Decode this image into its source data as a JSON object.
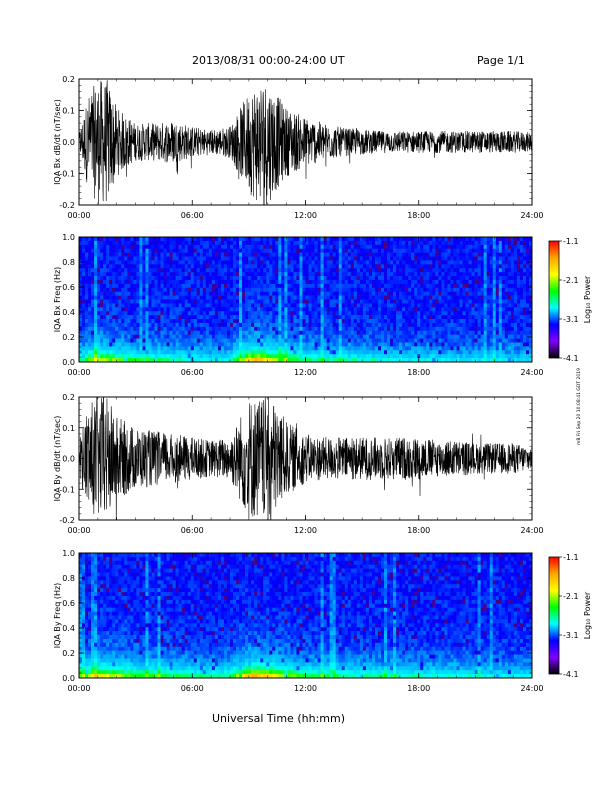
{
  "header": {
    "title": "2013/08/31   00:00-24:00 UT",
    "page": "Page 1/1"
  },
  "x_axis_label": "Universal Time (hh:mm)",
  "side_note": "mB Fri Sep 20 10:08:41 GDT 2019",
  "colorbar": {
    "label": "Log₁₀ Power",
    "ticks": [
      "-1.1",
      "-2.1",
      "-3.1",
      "-4.1"
    ],
    "stops": [
      "#ff0000",
      "#ffa500",
      "#ffff00",
      "#00ff00",
      "#00ffff",
      "#0000ff",
      "#8000ff",
      "#000000"
    ]
  },
  "chart_data": [
    {
      "type": "line",
      "ylabel": "IQA Bx dB/dt (nT/sec)",
      "x_ticks": [
        "00:00",
        "06:00",
        "12:00",
        "18:00",
        "24:00"
      ],
      "y_ticks": [
        "0.2",
        "0.1",
        "0.0",
        "-0.1",
        "-0.2"
      ],
      "xlim": [
        0,
        24
      ],
      "ylim": [
        -0.2,
        0.2
      ],
      "x": [
        0,
        0.5,
        1,
        1.5,
        2,
        3,
        4,
        5,
        6,
        7,
        8,
        9,
        9.5,
        10,
        10.5,
        11,
        12,
        13,
        14,
        15,
        16,
        17,
        18,
        19,
        20,
        21,
        22,
        23,
        24
      ],
      "envelope": [
        0.03,
        0.15,
        0.2,
        0.2,
        0.11,
        0.06,
        0.06,
        0.07,
        0.05,
        0.04,
        0.05,
        0.16,
        0.2,
        0.2,
        0.15,
        0.11,
        0.08,
        0.06,
        0.045,
        0.04,
        0.035,
        0.035,
        0.035,
        0.035,
        0.035,
        0.035,
        0.035,
        0.035,
        0.03
      ],
      "color": "#000000"
    },
    {
      "type": "heatmap",
      "ylabel": "IQA Bx Freq (Hz)",
      "x_ticks": [
        "00:00",
        "06:00",
        "12:00",
        "18:00",
        "24:00"
      ],
      "y_ticks": [
        "1.0",
        "0.8",
        "0.6",
        "0.4",
        "0.2",
        "0.0"
      ],
      "xlim": [
        0,
        24
      ],
      "ylim": [
        0,
        1
      ],
      "zlim": [
        -4.1,
        -1.1
      ],
      "activity_x": [
        0,
        1,
        2,
        3,
        4,
        5,
        6,
        7,
        8,
        9,
        9.5,
        10,
        11,
        12,
        13,
        14,
        15,
        16,
        17,
        18,
        19,
        20,
        21,
        22,
        23,
        24
      ],
      "activity": [
        0.5,
        0.85,
        0.7,
        0.55,
        0.55,
        0.5,
        0.45,
        0.4,
        0.45,
        0.95,
        1.0,
        0.9,
        0.7,
        0.55,
        0.5,
        0.5,
        0.45,
        0.45,
        0.4,
        0.4,
        0.4,
        0.35,
        0.35,
        0.35,
        0.35,
        0.3
      ]
    },
    {
      "type": "line",
      "ylabel": "IQA By dB/dt (nT/sec)",
      "x_ticks": [
        "00:00",
        "06:00",
        "12:00",
        "18:00",
        "24:00"
      ],
      "y_ticks": [
        "0.2",
        "0.1",
        "0.0",
        "-0.1",
        "-0.2"
      ],
      "xlim": [
        0,
        24
      ],
      "ylim": [
        -0.2,
        0.2
      ],
      "x": [
        0,
        0.5,
        1,
        1.5,
        2,
        3,
        4,
        5,
        6,
        7,
        8,
        9,
        9.5,
        10,
        10.5,
        11,
        12,
        13,
        14,
        15,
        16,
        17,
        18,
        19,
        20,
        21,
        22,
        23,
        24
      ],
      "envelope": [
        0.06,
        0.18,
        0.2,
        0.2,
        0.14,
        0.1,
        0.09,
        0.08,
        0.07,
        0.06,
        0.07,
        0.2,
        0.2,
        0.2,
        0.18,
        0.12,
        0.08,
        0.07,
        0.07,
        0.07,
        0.07,
        0.07,
        0.07,
        0.06,
        0.06,
        0.05,
        0.05,
        0.05,
        0.04
      ],
      "color": "#000000"
    },
    {
      "type": "heatmap",
      "ylabel": "IQA By Freq (Hz)",
      "x_ticks": [
        "00:00",
        "06:00",
        "12:00",
        "18:00",
        "24:00"
      ],
      "y_ticks": [
        "1.0",
        "0.8",
        "0.6",
        "0.4",
        "0.2",
        "0.0"
      ],
      "xlim": [
        0,
        24
      ],
      "ylim": [
        0,
        1
      ],
      "zlim": [
        -4.1,
        -1.1
      ],
      "activity_x": [
        0,
        1,
        2,
        3,
        4,
        5,
        6,
        7,
        8,
        9,
        9.5,
        10,
        11,
        12,
        13,
        14,
        15,
        16,
        17,
        18,
        19,
        20,
        21,
        22,
        23,
        24
      ],
      "activity": [
        0.6,
        0.9,
        0.8,
        0.65,
        0.65,
        0.6,
        0.55,
        0.5,
        0.55,
        1.0,
        1.0,
        0.95,
        0.75,
        0.6,
        0.55,
        0.55,
        0.5,
        0.5,
        0.5,
        0.45,
        0.45,
        0.45,
        0.45,
        0.4,
        0.4,
        0.35
      ]
    }
  ]
}
